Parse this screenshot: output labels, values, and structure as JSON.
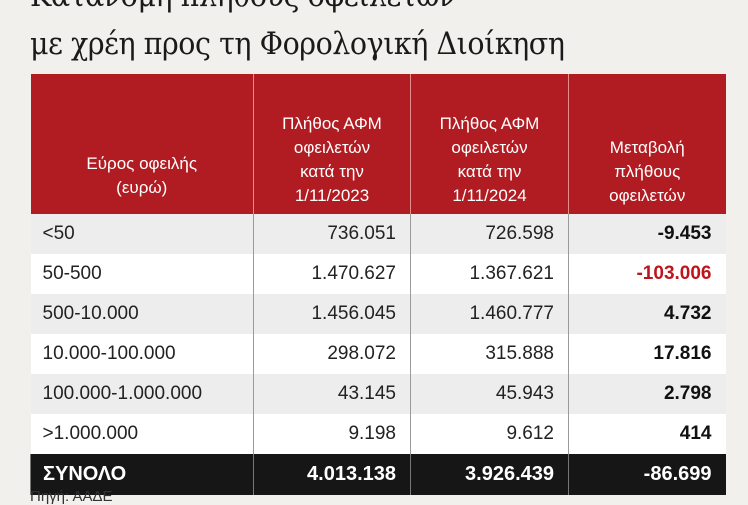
{
  "title_line1": "Κατανομή πλήθους οφειλετών",
  "title_line2": "με χρέη προς τη Φορολογική Διοίκηση",
  "source": "Πηγή: ΑΑΔΕ",
  "colors": {
    "header": "#b01c22",
    "total_row": "#161616",
    "negative_highlight": "#c0141c"
  },
  "chart_data": {
    "type": "table",
    "columns": [
      "Εύρος οφειλής (ευρώ)",
      "Πλήθος ΑΦΜ οφειλετών κατά την 1/11/2023",
      "Πλήθος ΑΦΜ οφειλετών κατά την 1/11/2024",
      "Μεταβολή πλήθους οφειλετών"
    ],
    "headers": [
      [
        "Εύρος οφειλής",
        "(ευρώ)"
      ],
      [
        "Πλήθος ΑΦΜ",
        "οφειλετών",
        "κατά την",
        "1/11/2023"
      ],
      [
        "Πλήθος ΑΦΜ",
        "οφειλετών",
        "κατά την",
        "1/11/2024"
      ],
      [
        "Μεταβολή",
        "πλήθους",
        "οφειλετών"
      ]
    ],
    "rows": [
      [
        "<50",
        "736.051",
        "726.598",
        "-9.453"
      ],
      [
        "50-500",
        "1.470.627",
        "1.367.621",
        "-103.006"
      ],
      [
        "500-10.000",
        "1.456.045",
        "1.460.777",
        "4.732"
      ],
      [
        "10.000-100.000",
        "298.072",
        "315.888",
        "17.816"
      ],
      [
        "100.000-1.000.000",
        "43.145",
        "45.943",
        "2.798"
      ],
      [
        ">1.000.000",
        "9.198",
        "9.612",
        "414"
      ]
    ],
    "total": [
      "ΣΥΝΟΛΟ",
      "4.013.138",
      "3.926.439",
      "-86.699"
    ]
  }
}
